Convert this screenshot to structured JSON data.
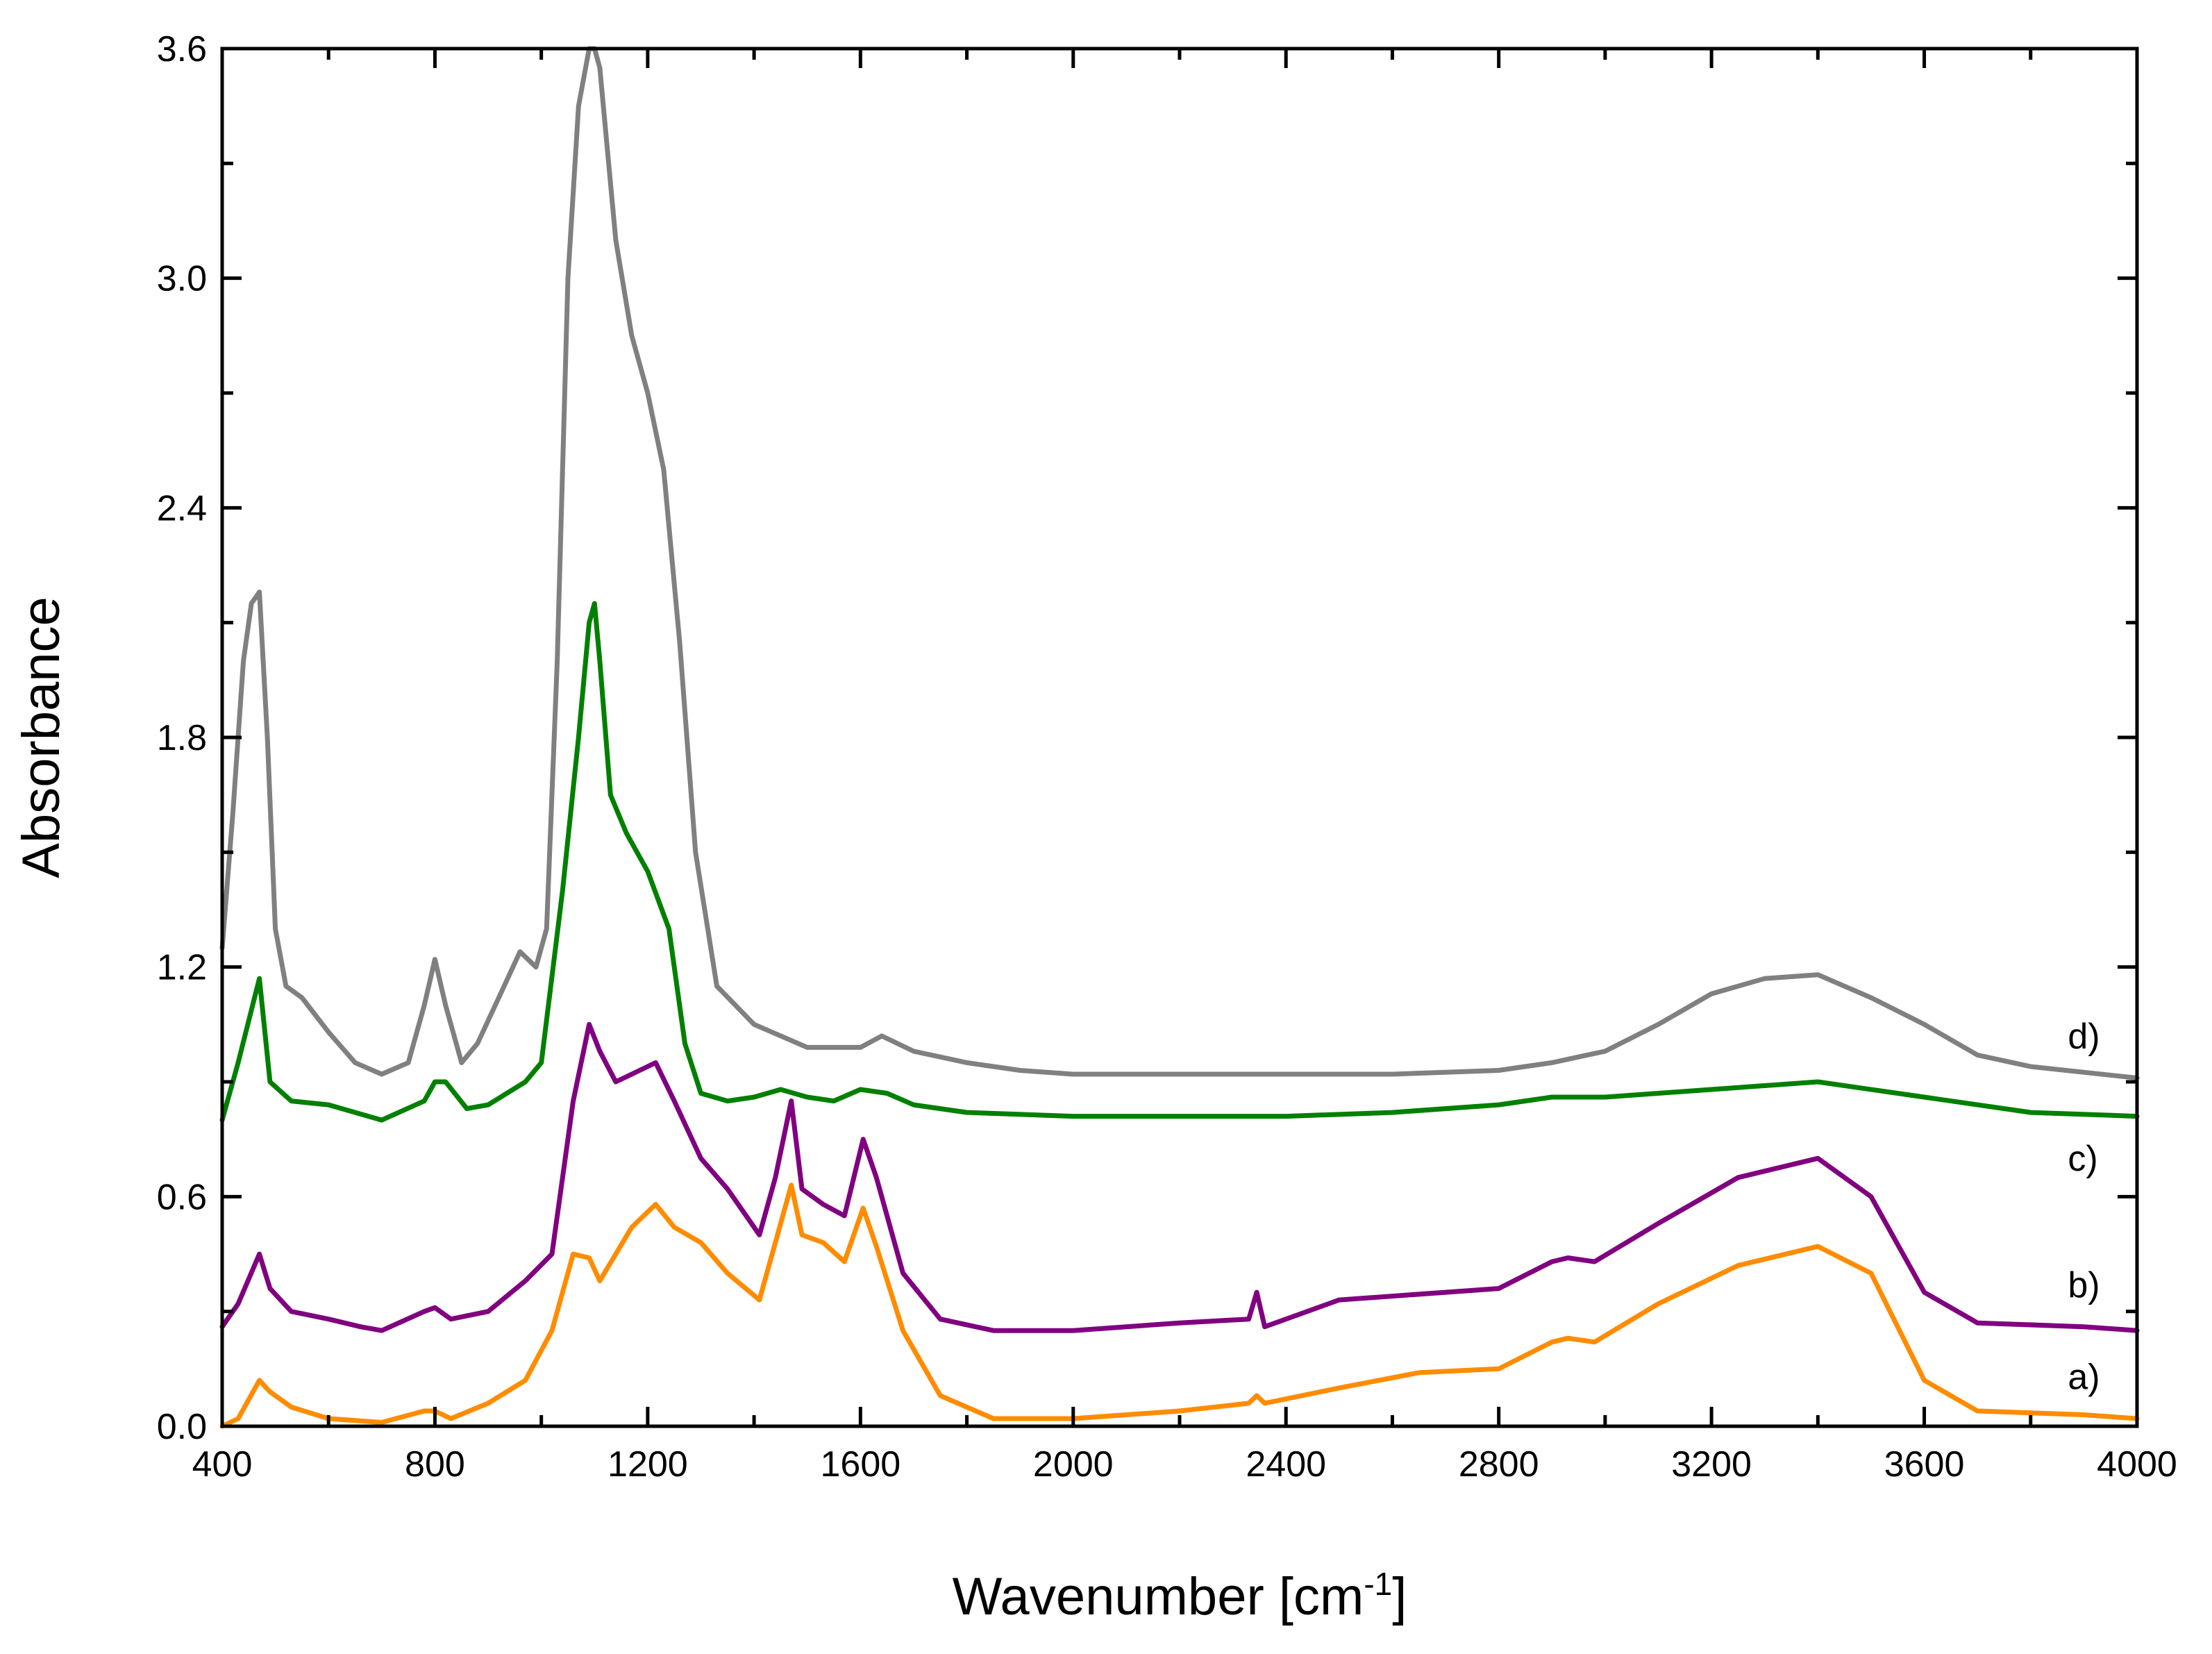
{
  "chart_data": {
    "type": "line",
    "title": "",
    "xlabel": "Wavenumber [cm",
    "xlabel_sup": "-1",
    "xlabel_suffix": "]",
    "ylabel": "Absorbance",
    "xlim": [
      400,
      4000
    ],
    "ylim": [
      0,
      3.6
    ],
    "x_ticks": [
      400,
      800,
      1200,
      1600,
      2000,
      2400,
      2800,
      3200,
      3600,
      4000
    ],
    "x_tick_labels": [
      "400",
      "800",
      "1200",
      "1600",
      "2000",
      "2400",
      "2800",
      "3200",
      "3600",
      "4000"
    ],
    "y_ticks": [
      0,
      0.6,
      1.2,
      1.8,
      2.4,
      3.0,
      3.6
    ],
    "y_tick_labels": [
      "0.0",
      "0.6",
      "1.2",
      "1.8",
      "2.4",
      "3.0",
      "3.6"
    ],
    "grid": false,
    "series": [
      {
        "name": "a)",
        "color": "#ff8c00",
        "x": [
          400,
          430,
          470,
          490,
          530,
          600,
          700,
          780,
          800,
          830,
          900,
          970,
          1020,
          1060,
          1090,
          1110,
          1140,
          1170,
          1215,
          1250,
          1300,
          1350,
          1410,
          1440,
          1470,
          1490,
          1530,
          1570,
          1605,
          1630,
          1680,
          1750,
          1850,
          2000,
          2200,
          2330,
          2345,
          2360,
          2500,
          2650,
          2800,
          2900,
          2930,
          2980,
          3100,
          3250,
          3400,
          3500,
          3600,
          3700,
          3900,
          4000
        ],
        "values": [
          0.0,
          0.02,
          0.12,
          0.09,
          0.05,
          0.02,
          0.01,
          0.04,
          0.04,
          0.02,
          0.06,
          0.12,
          0.25,
          0.45,
          0.44,
          0.38,
          0.45,
          0.52,
          0.58,
          0.52,
          0.48,
          0.4,
          0.33,
          0.48,
          0.63,
          0.5,
          0.48,
          0.43,
          0.57,
          0.47,
          0.25,
          0.08,
          0.02,
          0.02,
          0.04,
          0.06,
          0.08,
          0.06,
          0.1,
          0.14,
          0.15,
          0.22,
          0.23,
          0.22,
          0.32,
          0.42,
          0.47,
          0.4,
          0.12,
          0.04,
          0.03,
          0.02
        ]
      },
      {
        "name": "b)",
        "color": "#800080",
        "x": [
          400,
          430,
          470,
          490,
          530,
          600,
          660,
          700,
          780,
          800,
          830,
          900,
          970,
          1020,
          1060,
          1090,
          1110,
          1140,
          1170,
          1215,
          1250,
          1300,
          1350,
          1410,
          1440,
          1470,
          1490,
          1530,
          1570,
          1605,
          1630,
          1680,
          1750,
          1850,
          2000,
          2200,
          2330,
          2345,
          2360,
          2500,
          2800,
          2900,
          2930,
          2980,
          3100,
          3250,
          3400,
          3500,
          3600,
          3700,
          3900,
          4000
        ],
        "values": [
          0.26,
          0.32,
          0.45,
          0.36,
          0.3,
          0.28,
          0.26,
          0.25,
          0.3,
          0.31,
          0.28,
          0.3,
          0.38,
          0.45,
          0.85,
          1.05,
          0.98,
          0.9,
          0.92,
          0.95,
          0.85,
          0.7,
          0.62,
          0.5,
          0.65,
          0.85,
          0.62,
          0.58,
          0.55,
          0.75,
          0.65,
          0.4,
          0.28,
          0.25,
          0.25,
          0.27,
          0.28,
          0.35,
          0.26,
          0.33,
          0.36,
          0.43,
          0.44,
          0.43,
          0.53,
          0.65,
          0.7,
          0.6,
          0.35,
          0.27,
          0.26,
          0.25
        ]
      },
      {
        "name": "c)",
        "color": "#008000",
        "x": [
          400,
          430,
          470,
          490,
          530,
          600,
          700,
          780,
          800,
          820,
          860,
          900,
          970,
          1000,
          1040,
          1070,
          1090,
          1100,
          1110,
          1130,
          1160,
          1200,
          1240,
          1270,
          1300,
          1350,
          1400,
          1450,
          1500,
          1550,
          1600,
          1650,
          1700,
          1800,
          2000,
          2200,
          2400,
          2600,
          2800,
          2900,
          3000,
          3200,
          3400,
          3600,
          3800,
          4000
        ],
        "values": [
          0.8,
          0.95,
          1.17,
          0.9,
          0.85,
          0.84,
          0.8,
          0.85,
          0.9,
          0.9,
          0.83,
          0.84,
          0.9,
          0.95,
          1.4,
          1.8,
          2.1,
          2.15,
          2.0,
          1.65,
          1.55,
          1.45,
          1.3,
          1.0,
          0.87,
          0.85,
          0.86,
          0.88,
          0.86,
          0.85,
          0.88,
          0.87,
          0.84,
          0.82,
          0.81,
          0.81,
          0.81,
          0.82,
          0.84,
          0.86,
          0.86,
          0.88,
          0.9,
          0.86,
          0.82,
          0.81
        ]
      },
      {
        "name": "d)",
        "color": "#808080",
        "x": [
          400,
          420,
          440,
          455,
          470,
          485,
          500,
          520,
          550,
          600,
          650,
          700,
          750,
          780,
          800,
          820,
          850,
          880,
          920,
          960,
          990,
          1010,
          1030,
          1050,
          1070,
          1090,
          1100,
          1110,
          1140,
          1170,
          1200,
          1230,
          1260,
          1290,
          1330,
          1400,
          1500,
          1600,
          1640,
          1700,
          1800,
          1900,
          2000,
          2200,
          2400,
          2600,
          2800,
          2900,
          3000,
          3100,
          3200,
          3300,
          3400,
          3500,
          3600,
          3700,
          3800,
          4000
        ],
        "values": [
          1.25,
          1.6,
          2.0,
          2.15,
          2.18,
          1.8,
          1.3,
          1.15,
          1.12,
          1.03,
          0.95,
          0.92,
          0.95,
          1.1,
          1.22,
          1.1,
          0.95,
          1.0,
          1.12,
          1.24,
          1.2,
          1.3,
          2.0,
          3.0,
          3.45,
          3.6,
          3.6,
          3.55,
          3.1,
          2.85,
          2.7,
          2.5,
          2.05,
          1.5,
          1.15,
          1.05,
          0.99,
          0.99,
          1.02,
          0.98,
          0.95,
          0.93,
          0.92,
          0.92,
          0.92,
          0.92,
          0.93,
          0.95,
          0.98,
          1.05,
          1.13,
          1.17,
          1.18,
          1.12,
          1.05,
          0.97,
          0.94,
          0.91
        ]
      }
    ],
    "series_label_positions": {
      "a)": 0.13,
      "b)": 0.37,
      "c)": 0.7,
      "d)": 1.02
    }
  }
}
